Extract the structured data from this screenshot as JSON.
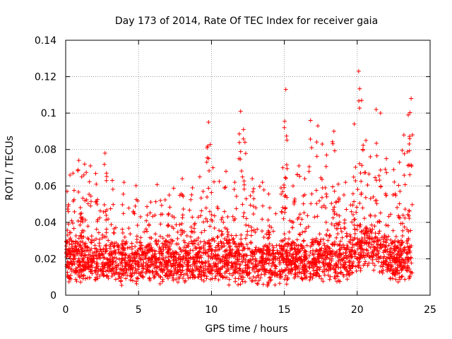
{
  "chart_data": {
    "type": "scatter",
    "title": "Day 173 of 2014, Rate Of TEC Index for receiver gaia",
    "xlabel": "GPS time / hours",
    "ylabel": "ROTI / TECUs",
    "xlim": [
      0,
      25
    ],
    "ylim": [
      0,
      0.14
    ],
    "xticks": [
      "0",
      "5",
      "10",
      "15",
      "20",
      "25"
    ],
    "yticks": [
      "0",
      "0.02",
      "0.04",
      "0.06",
      "0.08",
      "0.1",
      "0.12",
      "0.14"
    ],
    "grid": true,
    "marker": "+",
    "color": "#ff0000",
    "series": [
      {
        "name": "ROTI",
        "baseline": [
          [
            0.0,
            0.018
          ],
          [
            2.0,
            0.019
          ],
          [
            5.0,
            0.017
          ],
          [
            7.0,
            0.018
          ],
          [
            10.0,
            0.019
          ],
          [
            13.0,
            0.017
          ],
          [
            15.0,
            0.018
          ],
          [
            18.0,
            0.019
          ],
          [
            19.5,
            0.02
          ],
          [
            20.5,
            0.028
          ],
          [
            21.5,
            0.024
          ],
          [
            22.5,
            0.019
          ],
          [
            23.8,
            0.02
          ]
        ],
        "peaks": [
          [
            0.1,
            0.057
          ],
          [
            0.3,
            0.066
          ],
          [
            0.5,
            0.067
          ],
          [
            0.9,
            0.074
          ],
          [
            1.1,
            0.065
          ],
          [
            1.3,
            0.072
          ],
          [
            1.7,
            0.071
          ],
          [
            2.1,
            0.061
          ],
          [
            2.7,
            0.078
          ],
          [
            2.8,
            0.067
          ],
          [
            3.2,
            0.063
          ],
          [
            4.0,
            0.062
          ],
          [
            5.6,
            0.044
          ],
          [
            6.5,
            0.052
          ],
          [
            7.1,
            0.055
          ],
          [
            8.0,
            0.064
          ],
          [
            8.7,
            0.059
          ],
          [
            9.2,
            0.065
          ],
          [
            9.8,
            0.095
          ],
          [
            9.7,
            0.081
          ],
          [
            10.1,
            0.07
          ],
          [
            11.0,
            0.068
          ],
          [
            11.6,
            0.062
          ],
          [
            12.0,
            0.101
          ],
          [
            12.2,
            0.091
          ],
          [
            12.3,
            0.084
          ],
          [
            12.8,
            0.064
          ],
          [
            13.5,
            0.062
          ],
          [
            14.0,
            0.048
          ],
          [
            14.9,
            0.07
          ],
          [
            15.1,
            0.113
          ],
          [
            15.0,
            0.092
          ],
          [
            15.6,
            0.06
          ],
          [
            16.0,
            0.071
          ],
          [
            16.4,
            0.064
          ],
          [
            16.8,
            0.096
          ],
          [
            17.3,
            0.093
          ],
          [
            17.6,
            0.083
          ],
          [
            17.9,
            0.077
          ],
          [
            18.4,
            0.09
          ],
          [
            18.7,
            0.061
          ],
          [
            19.2,
            0.062
          ],
          [
            19.8,
            0.094
          ],
          [
            20.1,
            0.123
          ],
          [
            20.3,
            0.107
          ],
          [
            20.6,
            0.085
          ],
          [
            20.9,
            0.076
          ],
          [
            21.3,
            0.102
          ],
          [
            21.6,
            0.1
          ],
          [
            22.0,
            0.075
          ],
          [
            22.5,
            0.069
          ],
          [
            22.9,
            0.073
          ],
          [
            23.2,
            0.088
          ],
          [
            23.5,
            0.099
          ],
          [
            23.7,
            0.108
          ],
          [
            23.6,
            0.086
          ]
        ]
      }
    ]
  }
}
